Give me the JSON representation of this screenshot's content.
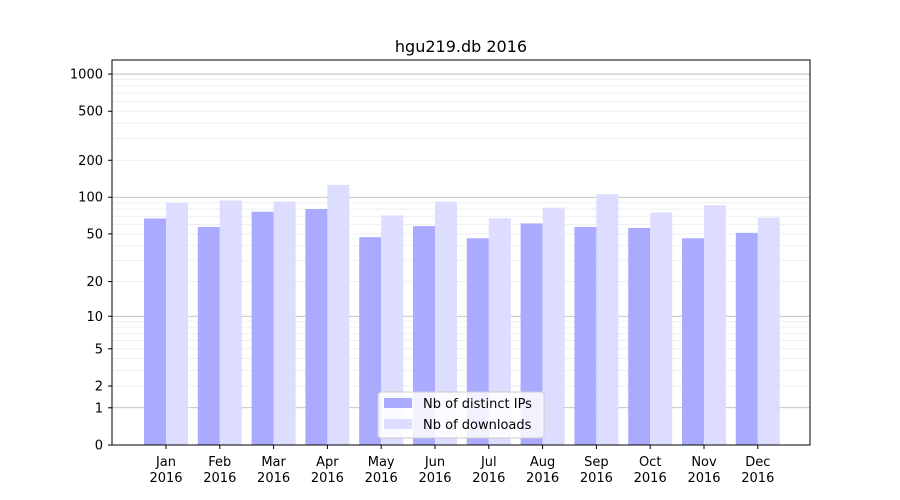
{
  "chart_data": {
    "type": "bar",
    "title": "hgu219.db 2016",
    "xlabel": "",
    "ylabel": "",
    "y_scale": "log(1+y)",
    "ylim": [
      0,
      1300
    ],
    "y_ticks": [
      0,
      1,
      2,
      5,
      10,
      20,
      50,
      100,
      200,
      500,
      1000
    ],
    "grid": true,
    "legend_position": "bottom-center",
    "categories": [
      "Jan\n2016",
      "Feb\n2016",
      "Mar\n2016",
      "Apr\n2016",
      "May\n2016",
      "Jun\n2016",
      "Jul\n2016",
      "Aug\n2016",
      "Sep\n2016",
      "Oct\n2016",
      "Nov\n2016",
      "Dec\n2016"
    ],
    "series": [
      {
        "name": "Nb of distinct IPs",
        "color": "#aaaaff",
        "values": [
          67,
          57,
          76,
          80,
          47,
          58,
          46,
          61,
          57,
          56,
          46,
          51
        ]
      },
      {
        "name": "Nb of downloads",
        "color": "#ddddff",
        "values": [
          90,
          94,
          92,
          126,
          71,
          92,
          67,
          82,
          106,
          75,
          86,
          68
        ]
      }
    ]
  }
}
